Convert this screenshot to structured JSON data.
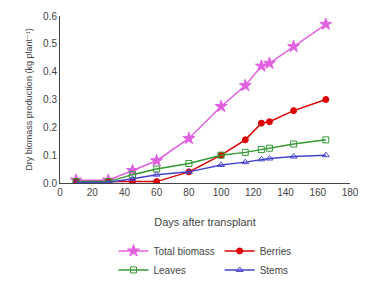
{
  "chart_data": {
    "type": "line",
    "xlabel": "Days after transplant",
    "ylabel": "Dry biomass production (kg plant⁻¹)",
    "xlim": [
      0,
      180
    ],
    "ylim": [
      0,
      0.6
    ],
    "xticks": [
      0,
      20,
      40,
      60,
      80,
      100,
      120,
      140,
      160,
      180
    ],
    "yticks": [
      {
        "value": 0.0,
        "label": "0.0"
      },
      0.1,
      0.2,
      0.3,
      0.4,
      0.5,
      0.6
    ],
    "grid": false,
    "legend": "bottom",
    "series": [
      {
        "name": "Total biomass",
        "color": "#e060e0",
        "marker": "star",
        "x": [
          10,
          30,
          45,
          60,
          80,
          100,
          115,
          125,
          130,
          145,
          165
        ],
        "values": [
          0.01,
          0.01,
          0.045,
          0.08,
          0.16,
          0.275,
          0.35,
          0.42,
          0.43,
          0.49,
          0.57
        ]
      },
      {
        "name": "Berries",
        "color": "#dd0000",
        "marker": "circle",
        "x": [
          10,
          30,
          45,
          60,
          80,
          100,
          115,
          125,
          130,
          145,
          165
        ],
        "values": [
          0.005,
          0.005,
          0.005,
          0.005,
          0.04,
          0.1,
          0.155,
          0.215,
          0.22,
          0.26,
          0.3
        ]
      },
      {
        "name": "Leaves",
        "color": "#339933",
        "marker": "square-open",
        "x": [
          10,
          30,
          45,
          60,
          80,
          100,
          115,
          125,
          130,
          145,
          165
        ],
        "values": [
          0.005,
          0.005,
          0.03,
          0.05,
          0.07,
          0.1,
          0.11,
          0.12,
          0.125,
          0.14,
          0.155
        ]
      },
      {
        "name": "Stems",
        "color": "#4444cc",
        "marker": "triangle-up-open",
        "x": [
          10,
          30,
          45,
          60,
          80,
          100,
          115,
          125,
          130,
          145,
          165
        ],
        "values": [
          0.002,
          0.002,
          0.015,
          0.03,
          0.04,
          0.065,
          0.075,
          0.085,
          0.088,
          0.095,
          0.1
        ]
      }
    ]
  }
}
